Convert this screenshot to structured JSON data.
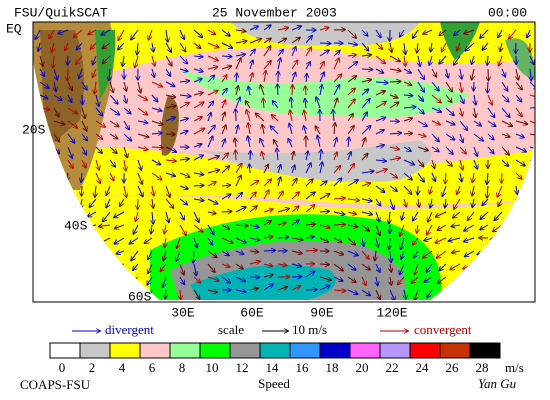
{
  "header": {
    "source": "FSU/QuikSCAT",
    "date": "25 November 2003",
    "time": "00:00"
  },
  "map": {
    "lat_labels": [
      "EQ",
      "20S",
      "40S",
      "60S"
    ],
    "lon_labels": [
      "30E",
      "60E",
      "90E",
      "120E"
    ]
  },
  "legend": {
    "divergent": "divergent",
    "scale": "scale",
    "scale_value": "10 m/s",
    "convergent": "convergent"
  },
  "colorbar": {
    "labels": [
      0,
      2,
      4,
      6,
      8,
      10,
      12,
      14,
      16,
      18,
      20,
      22,
      24,
      26,
      28
    ],
    "unit": "m/s",
    "title": "Speed",
    "colors": [
      "#ffffff",
      "#c8c8c8",
      "#ffff00",
      "#ffc8c8",
      "#96ff96",
      "#00ff00",
      "#969696",
      "#00b4b4",
      "#3296ff",
      "#0000c8",
      "#ff64ff",
      "#b496ff",
      "#ff0000",
      "#c83200",
      "#000000"
    ]
  },
  "footer": {
    "credit": "COAPS-FSU",
    "signature": "Yan Gu"
  }
}
